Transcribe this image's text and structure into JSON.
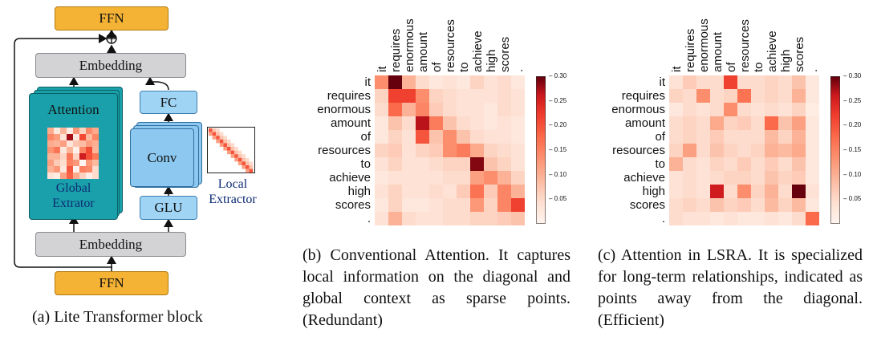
{
  "panel_a": {
    "ffn_top": "FFN",
    "ffn_bottom": "FFN",
    "embedding_top": "Embedding",
    "embedding_bottom": "Embedding",
    "attention": "Attention",
    "global_extractor": "Global\nExtrator",
    "fc": "FC",
    "conv": "Conv",
    "glu": "GLU",
    "local_extractor": "Local\nExtractor",
    "caption": "(a) Lite Transformer block"
  },
  "panel_b": {
    "caption": "(b) Conventional Attention. It captures local information on the diagonal and global context as sparse points. (Redundant)"
  },
  "panel_c": {
    "caption": "(c) Attention in LSRA. It is specialized for long-term relationships, indicated as points away from the diagonal. (Efficient)"
  },
  "colorbar_ticks": [
    "0.30",
    "0.25",
    "0.20",
    "0.15",
    "0.10",
    "0.05"
  ],
  "tokens": [
    "it",
    "requires",
    "enormous",
    "amount",
    "of",
    "resources",
    "to",
    "achieve",
    "high",
    "scores",
    "."
  ],
  "chart_data": [
    {
      "type": "heatmap",
      "title": "",
      "x_labels": [
        "it",
        "requires",
        "enormous",
        "amount",
        "of",
        "resources",
        "to",
        "achieve",
        "high",
        "scores",
        "."
      ],
      "y_labels": [
        "it",
        "requires",
        "enormous",
        "amount",
        "of",
        "resources",
        "to",
        "achieve",
        "high",
        "scores",
        "."
      ],
      "colorbar_range": [
        0.0,
        0.3
      ],
      "colormap": "Reds",
      "values": [
        [
          0.14,
          0.3,
          0.1,
          0.05,
          0.03,
          0.04,
          0.03,
          0.06,
          0.04,
          0.05,
          0.03
        ],
        [
          0.06,
          0.22,
          0.22,
          0.14,
          0.06,
          0.05,
          0.04,
          0.04,
          0.04,
          0.05,
          0.04
        ],
        [
          0.05,
          0.18,
          0.1,
          0.15,
          0.07,
          0.05,
          0.04,
          0.04,
          0.03,
          0.05,
          0.04
        ],
        [
          0.03,
          0.08,
          0.05,
          0.27,
          0.16,
          0.08,
          0.05,
          0.04,
          0.03,
          0.04,
          0.03
        ],
        [
          0.03,
          0.06,
          0.04,
          0.2,
          0.08,
          0.14,
          0.08,
          0.05,
          0.04,
          0.04,
          0.03
        ],
        [
          0.06,
          0.07,
          0.04,
          0.06,
          0.07,
          0.14,
          0.16,
          0.11,
          0.06,
          0.05,
          0.04
        ],
        [
          0.04,
          0.06,
          0.04,
          0.04,
          0.05,
          0.06,
          0.06,
          0.29,
          0.08,
          0.06,
          0.04
        ],
        [
          0.03,
          0.04,
          0.04,
          0.04,
          0.04,
          0.05,
          0.05,
          0.12,
          0.14,
          0.1,
          0.06
        ],
        [
          0.04,
          0.06,
          0.04,
          0.04,
          0.05,
          0.04,
          0.07,
          0.17,
          0.07,
          0.15,
          0.1
        ],
        [
          0.03,
          0.06,
          0.03,
          0.03,
          0.04,
          0.05,
          0.05,
          0.13,
          0.06,
          0.15,
          0.22
        ],
        [
          0.04,
          0.1,
          0.05,
          0.04,
          0.04,
          0.05,
          0.05,
          0.06,
          0.06,
          0.07,
          0.08
        ]
      ]
    },
    {
      "type": "heatmap",
      "title": "",
      "x_labels": [
        "it",
        "requires",
        "enormous",
        "amount",
        "of",
        "resources",
        "to",
        "achieve",
        "high",
        "scores",
        "."
      ],
      "y_labels": [
        "it",
        "requires",
        "enormous",
        "amount",
        "of",
        "resources",
        "to",
        "achieve",
        "high",
        "scores",
        "."
      ],
      "colorbar_range": [
        0.0,
        0.3
      ],
      "colormap": "Reds",
      "values": [
        [
          0.04,
          0.07,
          0.05,
          0.05,
          0.22,
          0.05,
          0.05,
          0.06,
          0.05,
          0.08,
          0.03
        ],
        [
          0.06,
          0.05,
          0.14,
          0.05,
          0.06,
          0.17,
          0.05,
          0.06,
          0.05,
          0.1,
          0.03
        ],
        [
          0.03,
          0.05,
          0.04,
          0.05,
          0.14,
          0.05,
          0.04,
          0.05,
          0.04,
          0.06,
          0.02
        ],
        [
          0.05,
          0.06,
          0.05,
          0.11,
          0.06,
          0.07,
          0.05,
          0.18,
          0.08,
          0.12,
          0.03
        ],
        [
          0.05,
          0.06,
          0.05,
          0.07,
          0.05,
          0.05,
          0.05,
          0.09,
          0.06,
          0.1,
          0.03
        ],
        [
          0.06,
          0.12,
          0.05,
          0.08,
          0.06,
          0.05,
          0.06,
          0.1,
          0.09,
          0.11,
          0.03
        ],
        [
          0.1,
          0.05,
          0.04,
          0.06,
          0.05,
          0.07,
          0.05,
          0.07,
          0.05,
          0.08,
          0.03
        ],
        [
          0.04,
          0.05,
          0.04,
          0.05,
          0.06,
          0.06,
          0.05,
          0.08,
          0.06,
          0.07,
          0.03
        ],
        [
          0.04,
          0.05,
          0.04,
          0.26,
          0.05,
          0.14,
          0.06,
          0.1,
          0.05,
          0.3,
          0.04
        ],
        [
          0.05,
          0.06,
          0.05,
          0.08,
          0.06,
          0.07,
          0.05,
          0.09,
          0.06,
          0.09,
          0.03
        ],
        [
          0.05,
          0.04,
          0.04,
          0.03,
          0.04,
          0.03,
          0.03,
          0.04,
          0.03,
          0.05,
          0.18
        ]
      ]
    }
  ]
}
